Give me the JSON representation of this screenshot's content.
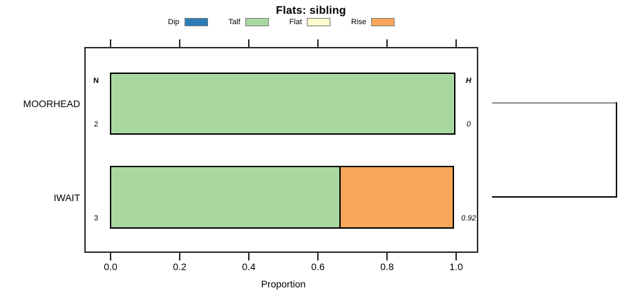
{
  "chart_data": {
    "type": "bar",
    "orientation": "horizontal",
    "stacked": true,
    "grid": false,
    "title": "Flats: sibling",
    "xlabel": "Proportion",
    "xlim": [
      0,
      1
    ],
    "x_ticks": [
      "0.0",
      "0.2",
      "0.4",
      "0.6",
      "0.8",
      "1.0"
    ],
    "legend_position": "top",
    "legend": [
      {
        "label": "Dip",
        "color": "#2C7CB8"
      },
      {
        "label": "Talf",
        "color": "#A8D8A0"
      },
      {
        "label": "Flat",
        "color": "#FBFBCB"
      },
      {
        "label": "Rise",
        "color": "#F9A65A"
      }
    ],
    "columns": {
      "count_header": "N",
      "height_header": "H"
    },
    "categories": [
      "MOORHEAD",
      "IWAIT"
    ],
    "rows": [
      {
        "category": "MOORHEAD",
        "count": "2",
        "height": "0",
        "segments": [
          {
            "label": "Talf",
            "value": 1.0
          }
        ]
      },
      {
        "category": "IWAIT",
        "count": "3",
        "height": "0.92",
        "segments": [
          {
            "label": "Talf",
            "value": 0.667
          },
          {
            "label": "Rise",
            "value": 0.333
          }
        ]
      }
    ]
  },
  "bracket": {
    "top_line_color": "#8a8a8a",
    "bottom_line_color": "#000000",
    "vertical_line_color": "#000000"
  },
  "style_colors": {
    "axis": "#262626",
    "bar_border": "#000000",
    "background": "#ffffff"
  }
}
